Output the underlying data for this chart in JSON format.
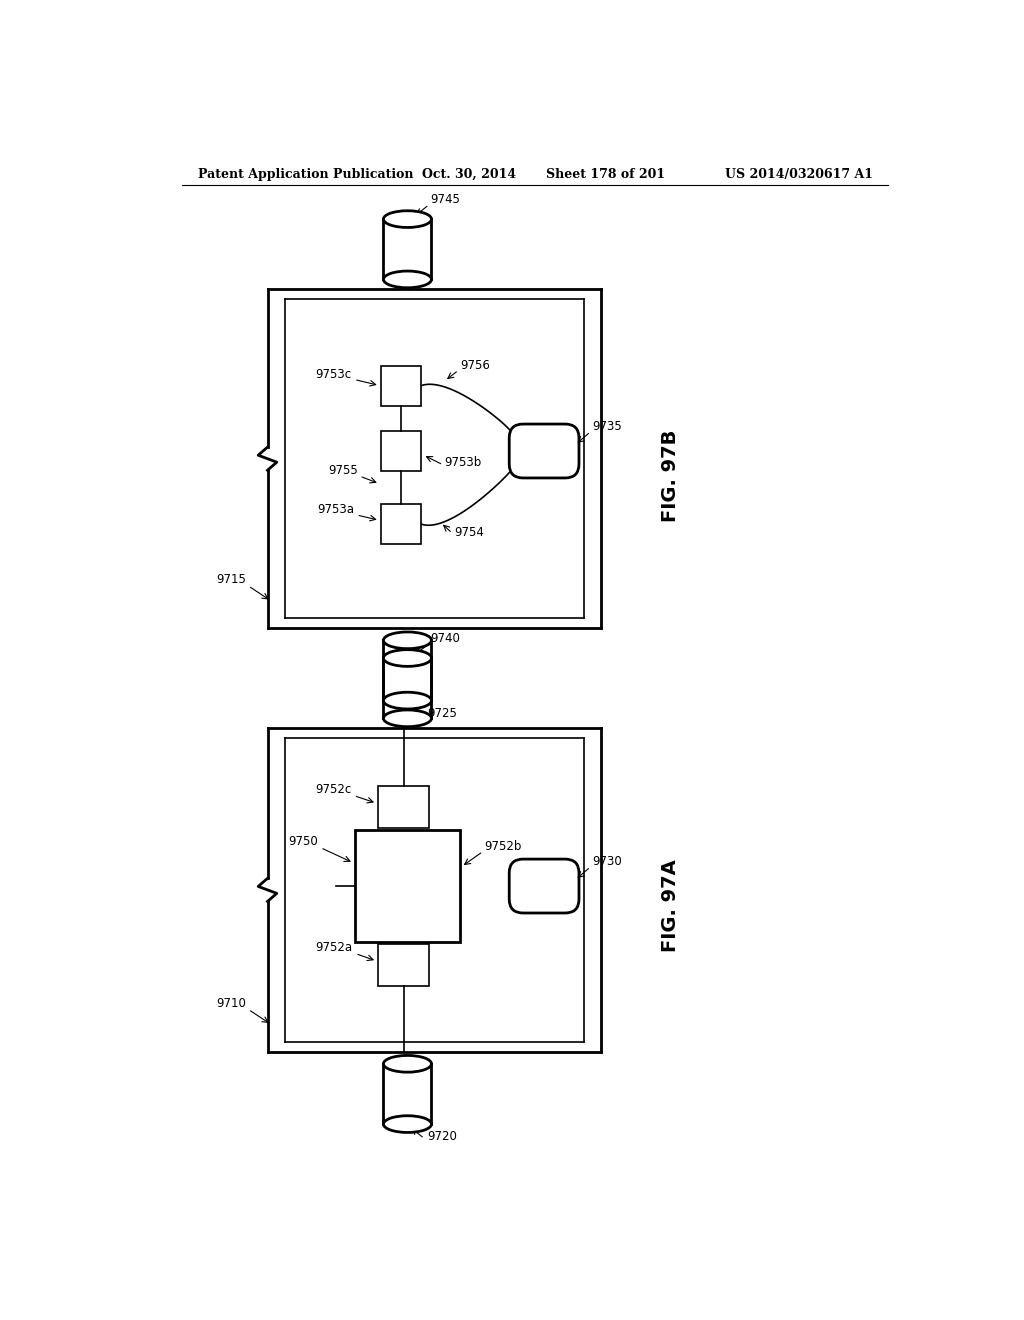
{
  "header_text": "Patent Application Publication",
  "header_date": "Oct. 30, 2014",
  "header_sheet": "Sheet 178 of 201",
  "header_patent": "US 2014/0320617 A1",
  "fig_a_label": "FIG. 97A",
  "fig_b_label": "FIG. 97B",
  "bg_color": "#ffffff",
  "line_color": "#000000"
}
